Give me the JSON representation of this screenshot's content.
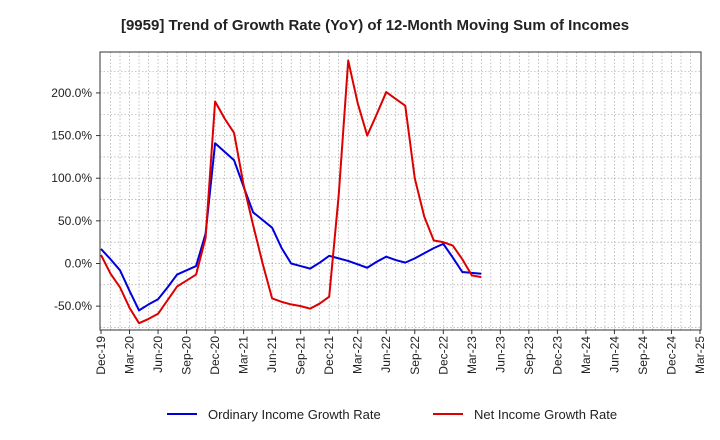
{
  "chart_data": {
    "type": "line",
    "title": "[9959]  Trend of Growth Rate (YoY) of 12-Month Moving Sum of Incomes",
    "xlabel": "",
    "ylabel": "",
    "x_ticks": [
      "Dec-19",
      "Mar-20",
      "Jun-20",
      "Sep-20",
      "Dec-20",
      "Mar-21",
      "Jun-21",
      "Sep-21",
      "Dec-21",
      "Mar-22",
      "Jun-22",
      "Sep-22",
      "Dec-22",
      "Mar-23",
      "Jun-23",
      "Sep-23",
      "Dec-23",
      "Mar-24",
      "Jun-24",
      "Sep-24",
      "Dec-24",
      "Mar-25"
    ],
    "y_ticks": [
      "-50.0%",
      "0.0%",
      "50.0%",
      "100.0%",
      "150.0%",
      "200.0%"
    ],
    "ylim": [
      -78,
      248
    ],
    "grid": true,
    "legend_position": "bottom",
    "series": [
      {
        "name": "Ordinary Income Growth Rate",
        "color": "#0000dd",
        "values": [
          17,
          5,
          -8,
          -32,
          -55,
          -48,
          -42,
          -28,
          -13,
          -8,
          -3,
          35,
          141,
          131,
          121,
          90,
          60,
          51,
          42,
          18,
          0,
          -3,
          -6,
          1,
          9,
          6,
          3,
          -1,
          -5,
          2,
          8,
          4,
          1,
          6,
          12,
          18,
          23,
          7,
          -10,
          -11,
          -12
        ]
      },
      {
        "name": "Net Income Growth Rate",
        "color": "#dd0000",
        "values": [
          10,
          -12,
          -28,
          -52,
          -70,
          -65,
          -59,
          -43,
          -27,
          -20,
          -13,
          30,
          190,
          170,
          153,
          92,
          45,
          0,
          -41,
          -45,
          -48,
          -50,
          -53,
          -47,
          -39,
          80,
          238,
          188,
          150,
          175,
          201,
          193,
          185,
          100,
          55,
          27,
          25,
          21,
          5,
          -14,
          -16
        ]
      }
    ]
  }
}
